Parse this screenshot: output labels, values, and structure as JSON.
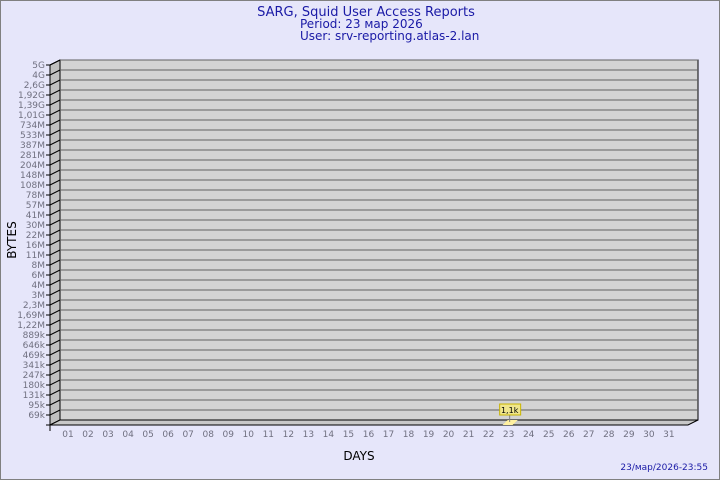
{
  "chart_data": {
    "type": "bar",
    "title": "SARG, Squid User Access Reports",
    "subtitle_period": "Period: 23 мар 2026",
    "subtitle_user": "User: srv-reporting.atlas-2.lan",
    "xlabel": "DAYS",
    "ylabel": "BYTES",
    "footer": "23/мар/2026-23:55",
    "y_scale": "log",
    "y_ticks": [
      "5G",
      "4G",
      "2,6G",
      "1,92G",
      "1,39G",
      "1,01G",
      "734M",
      "533M",
      "387M",
      "281M",
      "204M",
      "148M",
      "108M",
      "78M",
      "57M",
      "41M",
      "30M",
      "22M",
      "16M",
      "11M",
      "8M",
      "6M",
      "4M",
      "3M",
      "2,3M",
      "1,69M",
      "1,22M",
      "889k",
      "646k",
      "469k",
      "341k",
      "247k",
      "180k",
      "131k",
      "95k",
      "69k"
    ],
    "categories": [
      "01",
      "02",
      "03",
      "04",
      "05",
      "06",
      "07",
      "08",
      "09",
      "10",
      "11",
      "12",
      "13",
      "14",
      "15",
      "16",
      "17",
      "18",
      "19",
      "20",
      "21",
      "22",
      "23",
      "24",
      "25",
      "26",
      "27",
      "28",
      "29",
      "30",
      "31"
    ],
    "bars": [
      {
        "day": "23",
        "value": 1100,
        "label": "1,1k"
      }
    ],
    "grid": true,
    "colors": {
      "background": "#e6e6fa",
      "plot": "#d3d3d3",
      "bar": "#fff0a0",
      "label_box": "#f0e68c",
      "title": "#1a1aa6"
    }
  }
}
